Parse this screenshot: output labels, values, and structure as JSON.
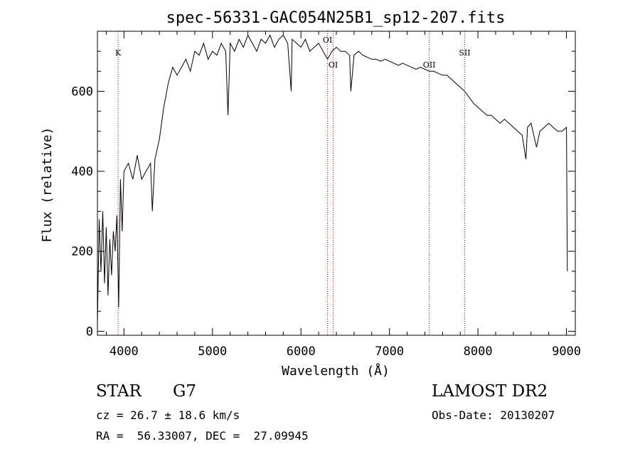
{
  "chart_data": {
    "type": "line",
    "title": "spec-56331-GAC054N25B1_sp12-207.fits",
    "xlabel": "Wavelength (Å)",
    "ylabel": "Flux (relative)",
    "xlim": [
      3700,
      9100
    ],
    "ylim": [
      -10,
      750
    ],
    "xticks": [
      4000,
      5000,
      6000,
      7000,
      8000,
      9000
    ],
    "yticks": [
      0,
      200,
      400,
      600
    ],
    "grid": false,
    "series": [
      {
        "x": [
          3700,
          3720,
          3740,
          3760,
          3780,
          3800,
          3820,
          3840,
          3860,
          3880,
          3900,
          3920,
          3940,
          3960,
          3980,
          4000,
          4050,
          4100,
          4150,
          4200,
          4250,
          4300,
          4320,
          4350,
          4400,
          4450,
          4500,
          4550,
          4600,
          4650,
          4700,
          4750,
          4800,
          4850,
          4900,
          4950,
          5000,
          5050,
          5100,
          5150,
          5175,
          5200,
          5250,
          5300,
          5350,
          5400,
          5450,
          5500,
          5550,
          5600,
          5650,
          5700,
          5750,
          5800,
          5850,
          5890,
          5900,
          5950,
          6000,
          6050,
          6100,
          6150,
          6200,
          6250,
          6300,
          6350,
          6400,
          6450,
          6500,
          6550,
          6563,
          6600,
          6650,
          6700,
          6750,
          6800,
          6850,
          6900,
          6950,
          7000,
          7050,
          7100,
          7150,
          7200,
          7250,
          7300,
          7350,
          7400,
          7450,
          7500,
          7550,
          7600,
          7650,
          7700,
          7750,
          7800,
          7850,
          7900,
          7950,
          8000,
          8050,
          8100,
          8150,
          8200,
          8250,
          8300,
          8350,
          8400,
          8450,
          8500,
          8542,
          8560,
          8600,
          8662,
          8700,
          8750,
          8800,
          8850,
          8900,
          8950,
          9000,
          9010
        ],
        "y": [
          20,
          280,
          150,
          300,
          120,
          260,
          90,
          230,
          140,
          250,
          200,
          290,
          60,
          380,
          250,
          400,
          420,
          380,
          440,
          380,
          400,
          420,
          300,
          430,
          480,
          560,
          620,
          660,
          640,
          660,
          680,
          650,
          700,
          690,
          720,
          680,
          700,
          690,
          720,
          700,
          540,
          720,
          700,
          730,
          710,
          740,
          720,
          700,
          730,
          720,
          740,
          710,
          730,
          740,
          720,
          600,
          730,
          720,
          710,
          730,
          700,
          710,
          720,
          700,
          680,
          700,
          710,
          700,
          700,
          690,
          600,
          690,
          700,
          690,
          685,
          680,
          680,
          675,
          680,
          675,
          670,
          665,
          670,
          665,
          660,
          655,
          660,
          655,
          650,
          650,
          645,
          640,
          640,
          630,
          620,
          610,
          600,
          585,
          570,
          560,
          550,
          540,
          540,
          530,
          520,
          530,
          520,
          510,
          500,
          490,
          430,
          510,
          520,
          460,
          500,
          510,
          520,
          510,
          500,
          500,
          510,
          150
        ]
      }
    ],
    "line_markers": [
      {
        "label": "K",
        "x": 3934
      },
      {
        "label": "OI",
        "x": 6300
      },
      {
        "label": "OI",
        "x": 6364
      },
      {
        "label": "OII",
        "x": 7450
      },
      {
        "label": "SII",
        "x": 7850
      }
    ]
  },
  "info": {
    "object_type": "STAR",
    "subclass": "G7",
    "survey": "LAMOST DR2",
    "cz": "cz = 26.7 ± 18.6 km/s",
    "obs_date": "Obs-Date: 20130207",
    "coords": "RA =  56.33007, DEC =  27.09945"
  }
}
